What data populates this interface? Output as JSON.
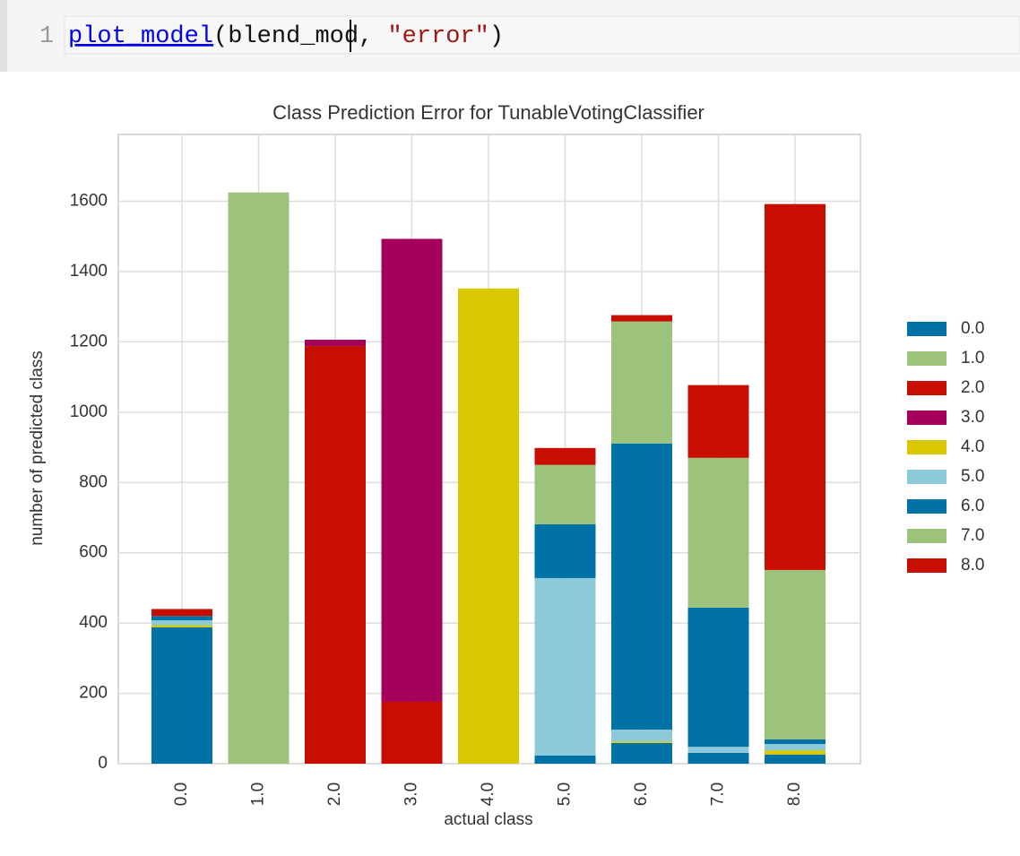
{
  "code": {
    "line_number": "1",
    "tokens": [
      "plot_model",
      "(blend_mod, ",
      "\"error\"",
      ")"
    ]
  },
  "chart_data": {
    "type": "stacked-bar",
    "title": "Class Prediction Error for TunableVotingClassifier",
    "x_label": "actual class",
    "y_label": "number of predicted class",
    "categories": [
      "0.0",
      "1.0",
      "2.0",
      "3.0",
      "4.0",
      "5.0",
      "6.0",
      "7.0",
      "8.0"
    ],
    "series": [
      {
        "name": "0.0",
        "color": "#0072a6",
        "values": [
          388,
          0,
          0,
          0,
          0,
          23,
          59,
          31,
          26
        ]
      },
      {
        "name": "1.0",
        "color": "#9dc27b",
        "values": [
          0,
          1625,
          0,
          0,
          0,
          0,
          0,
          0,
          0
        ]
      },
      {
        "name": "2.0",
        "color": "#c80e00",
        "values": [
          0,
          0,
          1188,
          176,
          0,
          0,
          0,
          0,
          0
        ]
      },
      {
        "name": "3.0",
        "color": "#a5005a",
        "values": [
          0,
          0,
          18,
          1317,
          0,
          0,
          0,
          0,
          0
        ]
      },
      {
        "name": "4.0",
        "color": "#d9c800",
        "values": [
          6,
          0,
          0,
          0,
          1352,
          0,
          4,
          0,
          12
        ]
      },
      {
        "name": "5.0",
        "color": "#8ccad9",
        "values": [
          14,
          0,
          0,
          0,
          0,
          505,
          34,
          17,
          18
        ]
      },
      {
        "name": "6.0",
        "color": "#0072a6",
        "values": [
          12,
          0,
          0,
          0,
          0,
          153,
          814,
          396,
          13
        ]
      },
      {
        "name": "7.0",
        "color": "#9dc27b",
        "values": [
          0,
          0,
          0,
          0,
          0,
          169,
          347,
          426,
          482
        ]
      },
      {
        "name": "8.0",
        "color": "#c80e00",
        "values": [
          20,
          0,
          0,
          0,
          0,
          48,
          18,
          207,
          1041
        ]
      }
    ],
    "ylim": [
      0,
      1790
    ],
    "yticks": [
      0,
      200,
      400,
      600,
      800,
      1000,
      1200,
      1400,
      1600
    ],
    "grid": true,
    "legend": "right"
  }
}
